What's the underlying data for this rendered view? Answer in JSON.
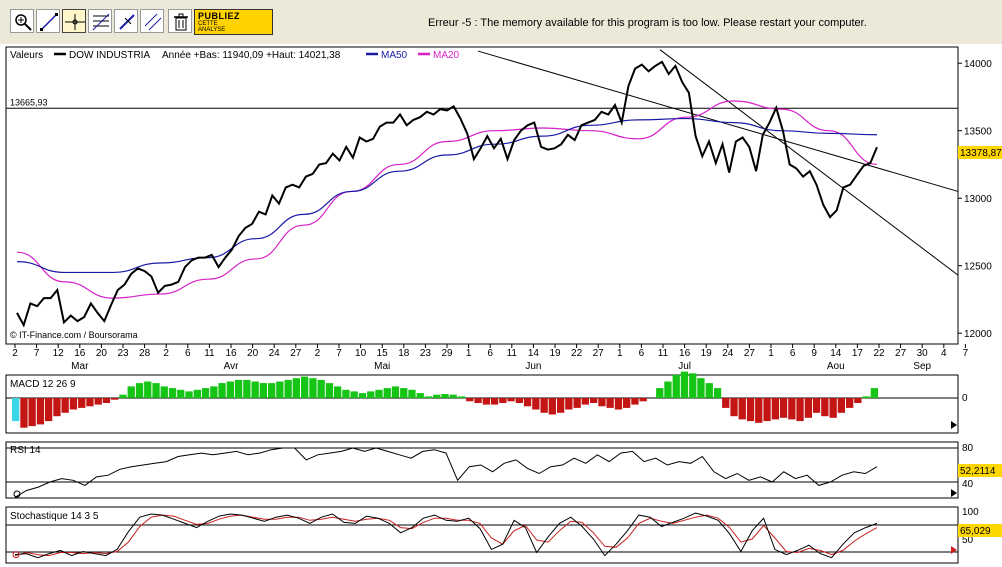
{
  "toolbar": {
    "tools": [
      "zoom-tool",
      "trendline-tool",
      "crosshair-tool",
      "fibonacci-tool",
      "pencil-tool",
      "parallel-lines-tool",
      "trash-tool"
    ],
    "promo": {
      "line1": "PUBLIEZ",
      "line2": "CETTE",
      "line3": "ANALYSE"
    },
    "error_message": "Erreur -5 : The memory available for this program is too low. Please restart your computer."
  },
  "chart_data": {
    "type": "line",
    "x": [
      "2",
      "7",
      "12",
      "16",
      "20",
      "23",
      "28",
      "2",
      "6",
      "11",
      "16",
      "20",
      "24",
      "27",
      "2",
      "7",
      "10",
      "15",
      "18",
      "23",
      "29",
      "1",
      "6",
      "11",
      "14",
      "19",
      "22",
      "27",
      "1",
      "6",
      "11",
      "16",
      "19",
      "24",
      "27",
      "1",
      "6",
      "9",
      "14",
      "17",
      "22",
      "27",
      "30",
      "4",
      "7"
    ],
    "months": [
      "Mar",
      "Avr",
      "Mai",
      "Jun",
      "Jul",
      "Aou",
      "Sep"
    ],
    "price_panel": {
      "header": {
        "label": "Valeurs",
        "symbol": "DOW INDUSTRIA",
        "range": "Année +Bas: 11940,09 +Haut: 14021,38",
        "ma50": "MA50",
        "ma20": "MA20"
      },
      "ylim": [
        11920,
        14120
      ],
      "yticks": [
        "14000",
        "13500",
        "13000",
        "12500",
        "12000"
      ],
      "last_value": "13378,87",
      "hline_label": "13665,93",
      "hline": 13665.93,
      "source": "© IT-Finance.com / Boursorama",
      "colors": {
        "price": "#000000",
        "ma50": "#1a1aa6",
        "ma20": "#d61fc6"
      },
      "series": [
        {
          "name": "DOW INDUSTRIA",
          "values": [
            12150,
            12060,
            12220,
            12200,
            12260,
            12260,
            12320,
            12080,
            12130,
            12090,
            12120,
            12220,
            12150,
            12090,
            12210,
            12320,
            12360,
            12440,
            12480,
            12460,
            12420,
            12300,
            12350,
            12360,
            12380,
            12490,
            12540,
            12560,
            12560,
            12580,
            12490,
            12560,
            12620,
            12720,
            12780,
            12810,
            12900,
            12880,
            13020,
            12960,
            13080,
            13100,
            13080,
            13160,
            13180,
            13250,
            13260,
            13330,
            13280,
            13380,
            13300,
            13450,
            13420,
            13440,
            13530,
            13560,
            13560,
            13620,
            13540,
            13580,
            13600,
            13640,
            13620,
            13660,
            13650,
            13680,
            13590,
            13480,
            13290,
            13370,
            13460,
            13370,
            13440,
            13290,
            13430,
            13500,
            13540,
            13560,
            13380,
            13360,
            13370,
            13400,
            13470,
            13430,
            13540,
            13560,
            13580,
            13640,
            13620,
            13690,
            13560,
            13830,
            13960,
            13990,
            13940,
            13980,
            14010,
            13920,
            13980,
            13860,
            13780,
            13460,
            13310,
            13420,
            13260,
            13400,
            13190,
            13420,
            13450,
            13380,
            13200,
            13470,
            13560,
            13670,
            13500,
            13250,
            13220,
            13160,
            13200,
            13100,
            12950,
            12860,
            12910,
            13080,
            13100,
            13170,
            13240,
            13260,
            13378.87
          ]
        },
        {
          "name": "MA50",
          "values": [
            12530,
            12450,
            12450,
            12520,
            12560,
            12700,
            12880,
            13050,
            13200,
            13320,
            13400,
            13460,
            13540,
            13580,
            13590,
            13560,
            13500,
            13480,
            13470
          ]
        },
        {
          "name": "MA20",
          "values": [
            12600,
            12380,
            12260,
            12290,
            12400,
            12550,
            12800,
            13050,
            13250,
            13420,
            13500,
            13520,
            13500,
            13440,
            13600,
            13720,
            13660,
            13500,
            13250
          ]
        }
      ]
    },
    "macd_panel": {
      "label": "MACD 12 26 9",
      "zero_label": "0",
      "values": [
        -0.7,
        -0.9,
        -0.85,
        -0.8,
        -0.7,
        -0.55,
        -0.45,
        -0.35,
        -0.3,
        -0.25,
        -0.2,
        -0.15,
        -0.05,
        0.1,
        0.35,
        0.45,
        0.5,
        0.45,
        0.35,
        0.3,
        0.25,
        0.2,
        0.25,
        0.3,
        0.35,
        0.45,
        0.5,
        0.55,
        0.55,
        0.5,
        0.45,
        0.45,
        0.5,
        0.55,
        0.6,
        0.65,
        0.6,
        0.55,
        0.45,
        0.35,
        0.25,
        0.2,
        0.15,
        0.2,
        0.25,
        0.3,
        0.35,
        0.3,
        0.25,
        0.15,
        0.05,
        0.1,
        0.12,
        0.1,
        0.05,
        -0.1,
        -0.15,
        -0.2,
        -0.2,
        -0.15,
        -0.1,
        -0.15,
        -0.25,
        -0.35,
        -0.45,
        -0.5,
        -0.45,
        -0.35,
        -0.3,
        -0.2,
        -0.15,
        -0.25,
        -0.3,
        -0.35,
        -0.3,
        -0.2,
        -0.1,
        0.0,
        0.3,
        0.5,
        0.7,
        0.8,
        0.75,
        0.6,
        0.45,
        0.3,
        -0.3,
        -0.55,
        -0.65,
        -0.7,
        -0.75,
        -0.7,
        -0.65,
        -0.6,
        -0.65,
        -0.7,
        -0.6,
        -0.45,
        -0.55,
        -0.6,
        -0.45,
        -0.3,
        -0.15,
        0.05,
        0.3
      ],
      "colors": {
        "positive": "#15c415",
        "negative": "#c41515",
        "first": "#3ad6e8"
      }
    },
    "rsi_panel": {
      "label": "RSI 14",
      "levels": [
        "80",
        "40"
      ],
      "last_value": "52,2114",
      "values": [
        22,
        30,
        34,
        40,
        44,
        42,
        36,
        46,
        48,
        55,
        58,
        60,
        62,
        64,
        70,
        72,
        74,
        72,
        74,
        76,
        72,
        74,
        78,
        80,
        80,
        66,
        72,
        74,
        76,
        80,
        76,
        80,
        76,
        72,
        68,
        76,
        78,
        74,
        42,
        58,
        60,
        52,
        62,
        66,
        56,
        50,
        58,
        60,
        68,
        62,
        72,
        64,
        74,
        76,
        64,
        68,
        60,
        64,
        62,
        70,
        52,
        44,
        50,
        42,
        46,
        40,
        52,
        44,
        48,
        36,
        40,
        48,
        52,
        50,
        58
      ]
    },
    "stoch_panel": {
      "label": "Stochastique 14 3 5",
      "levels": [
        "100",
        "50"
      ],
      "last_value": "65,029",
      "k_values": [
        20,
        22,
        14,
        22,
        28,
        18,
        26,
        22,
        18,
        30,
        64,
        92,
        98,
        96,
        88,
        80,
        72,
        84,
        94,
        98,
        96,
        90,
        84,
        92,
        96,
        90,
        80,
        92,
        98,
        82,
        80,
        94,
        90,
        80,
        62,
        72,
        90,
        96,
        86,
        84,
        90,
        70,
        30,
        40,
        86,
        72,
        24,
        54,
        80,
        92,
        74,
        50,
        18,
        40,
        66,
        96,
        92,
        74,
        82,
        90,
        100,
        94,
        86,
        60,
        26,
        66,
        90,
        30,
        20,
        28,
        38,
        22,
        14,
        40,
        62,
        72,
        80
      ],
      "d_values": [
        18,
        24,
        20,
        18,
        24,
        24,
        22,
        24,
        22,
        26,
        44,
        74,
        92,
        96,
        94,
        86,
        78,
        80,
        88,
        94,
        96,
        92,
        88,
        88,
        92,
        92,
        86,
        88,
        92,
        88,
        84,
        88,
        90,
        86,
        72,
        70,
        82,
        90,
        90,
        86,
        86,
        80,
        52,
        40,
        66,
        76,
        48,
        44,
        66,
        84,
        82,
        62,
        36,
        34,
        52,
        80,
        90,
        84,
        80,
        86,
        92,
        96,
        90,
        72,
        44,
        50,
        76,
        52,
        26,
        24,
        32,
        28,
        20,
        28,
        46,
        60,
        72
      ]
    },
    "annotations": [
      {
        "type": "trendline",
        "from": [
          "5/25",
          14090
        ],
        "to": [
          "8/31",
          13050
        ]
      },
      {
        "type": "trendline",
        "from": [
          "7/16",
          14100
        ],
        "to": [
          "9/7",
          12430
        ]
      }
    ]
  }
}
